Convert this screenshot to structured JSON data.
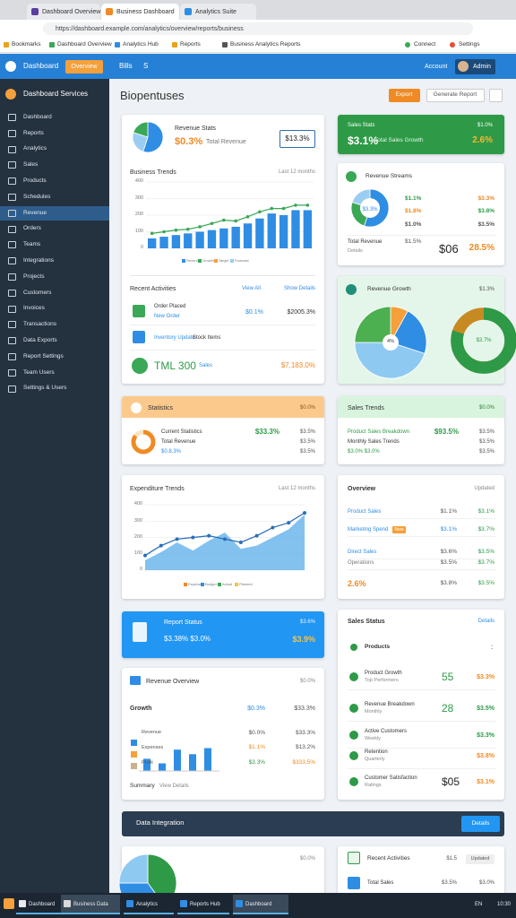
{
  "browser": {
    "tabs": [
      "Dashboard Overview",
      "Business Dashboard",
      "Analytics Suite"
    ],
    "url": "https://dashboard.example.com/analytics/overview/reports/business",
    "bookmarks": [
      "Bookmarks",
      "Dashboard Overview",
      "Analytics Hub",
      "Reports",
      "Business Analytics Reports"
    ],
    "extensions": [
      "Connect",
      "Settings"
    ]
  },
  "header": {
    "brand": "Dashboard",
    "button": "Overview",
    "menu": [
      "Bills",
      "S"
    ],
    "user": "Account",
    "avatar_name": "Admin"
  },
  "sidebar": {
    "title": "Dashboard Services",
    "active": 6,
    "items": [
      "Dashboard",
      "Reports",
      "Analytics",
      "Sales",
      "Products",
      "Schedules",
      "Revenue",
      "Orders",
      "Teams",
      "Integrations",
      "Projects",
      "Customers",
      "Invoices",
      "Transactions",
      "Data Exports",
      "Report Settings",
      "Team Users",
      "Settings & Users"
    ]
  },
  "page": {
    "title": "Biopentuses",
    "actions": [
      "Export",
      "Generate Report"
    ]
  },
  "revenue_card": {
    "title": "Revenue Stats",
    "value": "$0.3%",
    "label": "Total Revenue",
    "badge": "$13.3%",
    "chart": {
      "type": "bar",
      "title": "Business Trends",
      "subtitle": "Last 12 months",
      "ylim": [
        0,
        400
      ],
      "yticks": [
        0,
        100,
        200,
        300,
        400
      ],
      "series": [
        {
          "name": "Revenue",
          "color": "#2f8de4",
          "values": [
            60,
            70,
            80,
            90,
            100,
            110,
            120,
            130,
            150,
            180,
            210,
            200,
            230,
            230
          ]
        },
        {
          "name": "Growth",
          "color": "#3aa856",
          "values": [
            90,
            100,
            110,
            115,
            130,
            150,
            170,
            165,
            190,
            220,
            240,
            240,
            260,
            260
          ]
        }
      ],
      "legend": [
        "Target",
        "Forecast"
      ]
    },
    "activities": {
      "title": "Recent Activities",
      "links": [
        "View All",
        "Show Details"
      ],
      "rows": [
        {
          "title": "Order Placed",
          "sub": "New Order",
          "value": "$0.1%",
          "amount": "$2005.3%"
        },
        {
          "title": "Inventory Update",
          "sub": "Stock Items"
        },
        {
          "title": "TML 300",
          "sub": "Sales",
          "amount": "$7,183.0%"
        }
      ]
    }
  },
  "sales_card": {
    "title": "Sales Stats",
    "value": "$3.1%",
    "label": "Total Sales Growth",
    "top": "$1.0%",
    "change": "2.6%"
  },
  "streams_card": {
    "title": "Revenue Streams",
    "pie": [
      55,
      25,
      20
    ],
    "pie_label": "$3.3%",
    "rows": [
      [
        "$1.1%",
        "$3.3%"
      ],
      [
        "$1.8%",
        "$3.8%"
      ],
      [
        "$1.0%",
        "$3.5%"
      ]
    ],
    "total": {
      "label": "Total Revenue",
      "value": "$1.5%",
      "big": "$06",
      "change": "28.5%",
      "link": "Details"
    }
  },
  "growth_card": {
    "title": "Revenue Growth",
    "badge": "$1.3%",
    "pie": [
      8,
      22,
      45,
      25
    ],
    "center": "4%",
    "donut": 80,
    "donut_label": "$3.7%"
  },
  "stats_card": {
    "title": "Statistics",
    "badge": "$0.0%",
    "lines": [
      "Current Statistics",
      "Total Revenue",
      "$0.8.3%"
    ],
    "main": "$33.3%",
    "values": [
      "$3.5%",
      "$3.5%",
      "$3.5%"
    ],
    "donut": 85
  },
  "trends_card": {
    "title": "Sales Trends",
    "badge": "$0.0%",
    "lines": [
      "Product Sales Breakdown",
      "Monthly Sales Trends",
      "$3.0% $3.0%"
    ],
    "main": "$93.5%",
    "values": [
      "$3.5%",
      "$3.5%",
      "$3.5%"
    ]
  },
  "expenditure_card": {
    "type": "area",
    "title": "Expenditure Trends",
    "subtitle": "Last 12 months",
    "ylim": [
      0,
      400
    ],
    "yticks": [
      0,
      100,
      200,
      300,
      400
    ],
    "series": [
      {
        "name": "Expenses",
        "color": "#5aaee8",
        "values": [
          60,
          110,
          170,
          120,
          180,
          230,
          130,
          150,
          200,
          250,
          340
        ]
      },
      {
        "name": "Budget",
        "color": "#2a6fb8",
        "values": [
          90,
          150,
          190,
          200,
          210,
          190,
          170,
          210,
          260,
          290,
          350
        ]
      }
    ],
    "legend": [
      "Actual",
      "Planned"
    ]
  },
  "overview_card": {
    "title": "Overview",
    "link": "Updated",
    "badge": "New",
    "rows": [
      {
        "label": "Product Sales",
        "a": "$1.1%",
        "b": "$3.1%"
      },
      {
        "label": "Marketing Spend",
        "a": "$3.1%",
        "b": "$3.7%"
      },
      {
        "label": "Direct Sales",
        "a": "$3.6%",
        "b": "$3.5%"
      },
      {
        "label": "Operations",
        "a": "$3.5%",
        "b": "$3.7%"
      },
      {
        "label": "2.6%",
        "a": "$3.8%",
        "b": "$3.5%"
      }
    ]
  },
  "report_card": {
    "title": "Report Status",
    "badge": "$3.6%",
    "line": "$3.38% $3.0%",
    "value": "$3.9%"
  },
  "sales_status": {
    "title": "Sales Status",
    "link": "Details",
    "head": "Products",
    "menu": ":",
    "rows": [
      {
        "title": "Product Growth",
        "sub": "Top Performers",
        "big": "55",
        "value": "$3.3%"
      },
      {
        "title": "Revenue Breakdown",
        "sub": "Monthly",
        "big": "28",
        "value": "$3.5%"
      },
      {
        "title": "Active Customers",
        "sub": "Weekly",
        "value": "$3.3%"
      },
      {
        "title": "Retention",
        "sub": "Quarterly",
        "value": "$3.8%"
      },
      {
        "title": "Customer Satisfaction",
        "sub": "Ratings",
        "big": "$05",
        "value": "$3.1%"
      }
    ]
  },
  "revenue_overview": {
    "title": "Revenue Overview",
    "badge": "$0.0%",
    "head": "Growth",
    "head_a": "$0.3%",
    "head_b": "$33.3%",
    "bars": {
      "type": "bar",
      "ylim": [
        0,
        100
      ],
      "values": [
        40,
        25,
        70,
        55,
        75
      ],
      "color": "#2f8de4"
    },
    "legend": [
      "Revenue",
      "Expenses",
      "Profit"
    ],
    "rows": [
      [
        "$0.0%",
        "$33.3%"
      ],
      [
        "$1.1%",
        "$13.2%"
      ],
      [
        "$3.3%",
        "$333.5%"
      ]
    ],
    "summary": "Summary",
    "link": "View Details"
  },
  "banner": {
    "title": "Data Integration",
    "button": "Details"
  },
  "bottom_left": {
    "badge": "$0.0%",
    "pie": [
      40,
      35,
      25
    ]
  },
  "bottom_right": {
    "title": "Recent Activities",
    "value": "$1.5",
    "link": "Updated",
    "row": [
      "Total Sales",
      "$3.5%",
      "$3.0%"
    ]
  },
  "taskbar": {
    "items": [
      "Dashboard",
      "Business Data",
      "Analytics",
      "Reports Hub",
      "Dashboard"
    ],
    "tray": [
      "EN",
      "10:30"
    ]
  }
}
